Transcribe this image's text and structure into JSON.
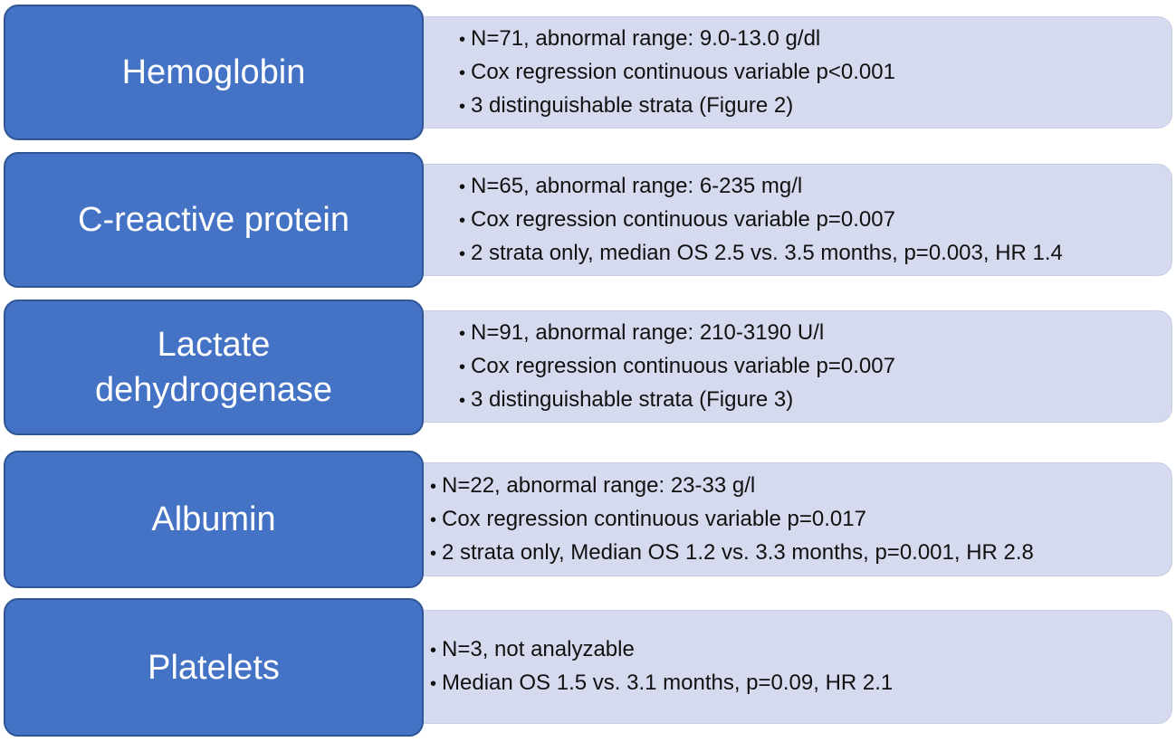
{
  "rows": [
    {
      "label": "Hemoglobin",
      "label_lines": [
        "Hemoglobin"
      ],
      "bullets": [
        "N=71, abnormal range: 9.0-13.0 g/dl",
        "Cox regression continuous variable p<0.001",
        "3 distinguishable strata (Figure 2)"
      ]
    },
    {
      "label": "C-reactive protein",
      "label_lines": [
        "C-reactive protein"
      ],
      "bullets": [
        "N=65, abnormal range: 6-235 mg/l",
        "Cox regression continuous variable p=0.007",
        "2 strata only, median OS 2.5 vs. 3.5 months, p=0.003, HR 1.4"
      ]
    },
    {
      "label": "Lactate dehydrogenase",
      "label_lines": [
        "Lactate",
        "dehydrogenase"
      ],
      "bullets": [
        "N=91, abnormal range: 210-3190 U/l",
        "Cox regression continuous variable p=0.007",
        "3 distinguishable strata (Figure 3)"
      ]
    },
    {
      "label": "Albumin",
      "label_lines": [
        "Albumin"
      ],
      "bullets": [
        "N=22, abnormal range: 23-33 g/l",
        "Cox regression continuous variable p=0.017",
        "2 strata only, Median OS 1.2 vs. 3.3 months, p=0.001, HR 2.8"
      ]
    },
    {
      "label": "Platelets",
      "label_lines": [
        "Platelets"
      ],
      "bullets": [
        "N=3, not analyzable",
        "Median OS 1.5 vs. 3.1 months, p=0.09, HR 2.1"
      ]
    }
  ],
  "colors": {
    "label_fill": "#4472c4",
    "label_border": "#2f5597",
    "details_fill": "#d5daee",
    "text_dark": "#111111",
    "text_light": "#ffffff"
  }
}
